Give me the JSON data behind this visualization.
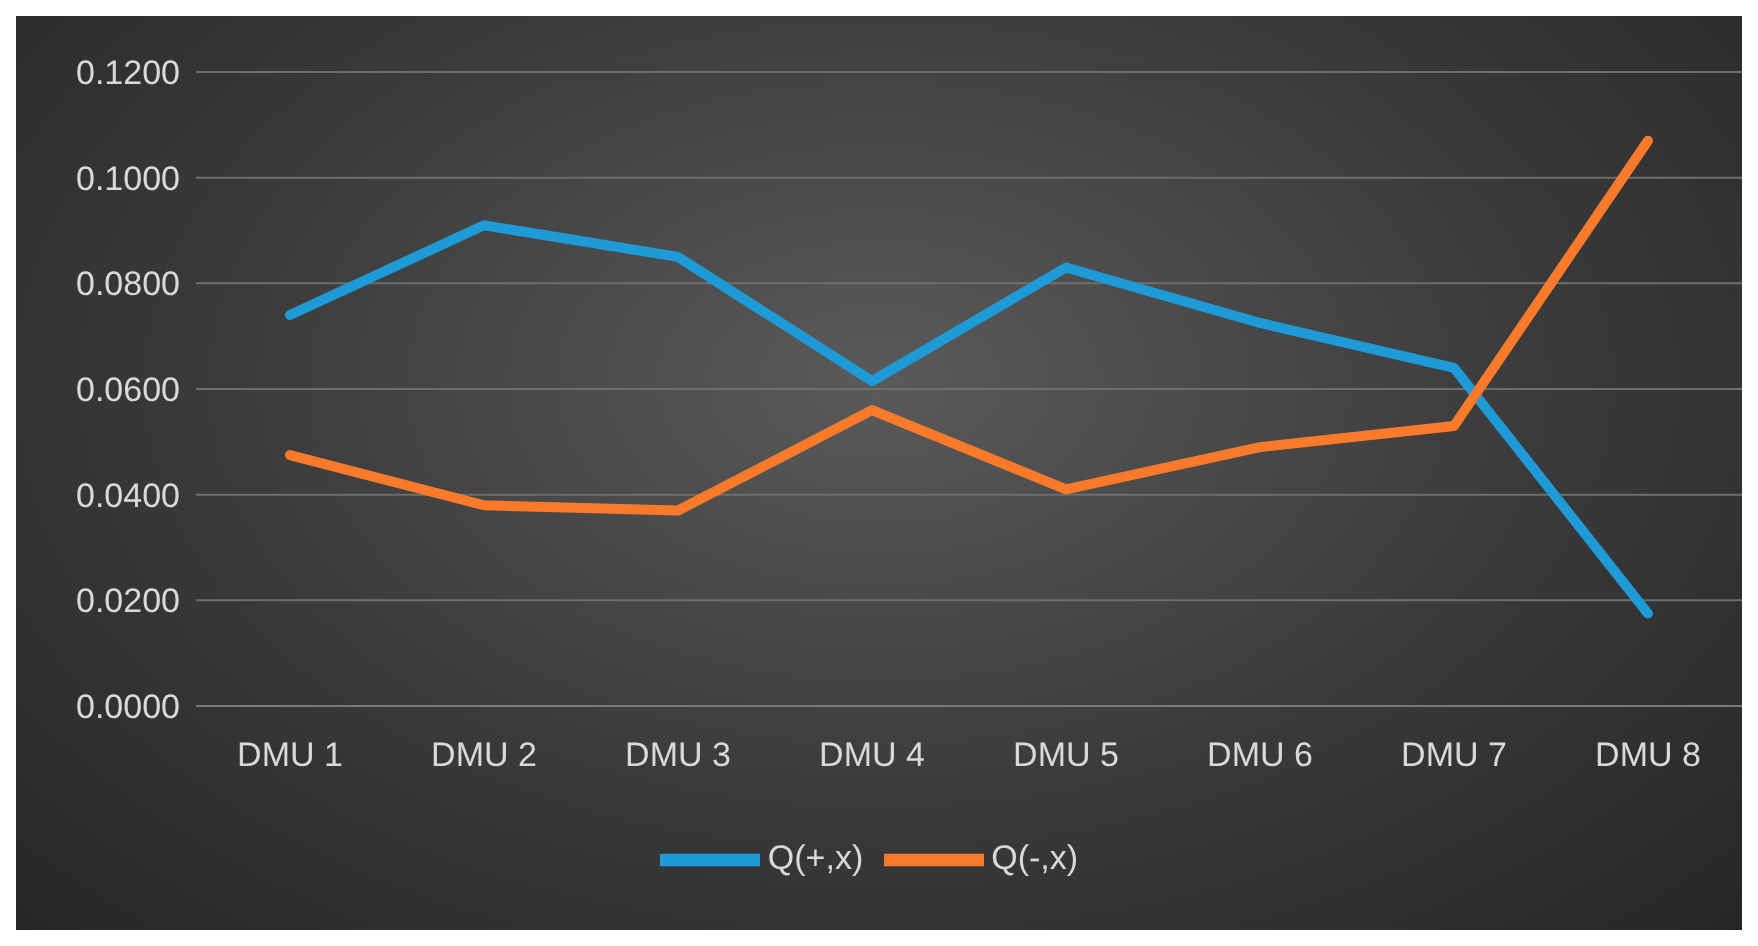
{
  "chart_data": {
    "type": "line",
    "categories": [
      "DMU 1",
      "DMU 2",
      "DMU 3",
      "DMU 4",
      "DMU 5",
      "DMU 6",
      "DMU 7",
      "DMU 8"
    ],
    "series": [
      {
        "name": "Q(+,x)",
        "color": "#1e9ad6",
        "values": [
          0.074,
          0.091,
          0.085,
          0.0615,
          0.083,
          0.0725,
          0.064,
          0.0175
        ]
      },
      {
        "name": "Q(-,x)",
        "color": "#f97a2a",
        "values": [
          0.0475,
          0.038,
          0.037,
          0.056,
          0.041,
          0.049,
          0.053,
          0.107
        ]
      }
    ],
    "ylim": [
      0,
      0.12
    ],
    "yticks": [
      {
        "value": 0,
        "label": "0.0000"
      },
      {
        "value": 0.02,
        "label": "0.0200"
      },
      {
        "value": 0.04,
        "label": "0.0400"
      },
      {
        "value": 0.06,
        "label": "0.0600"
      },
      {
        "value": 0.08,
        "label": "0.0800"
      },
      {
        "value": 0.1,
        "label": "0.1000"
      },
      {
        "value": 0.12,
        "label": "0.1200"
      }
    ],
    "grid": "y",
    "legend": "bottom",
    "marker": "none",
    "line_style": "solid"
  }
}
